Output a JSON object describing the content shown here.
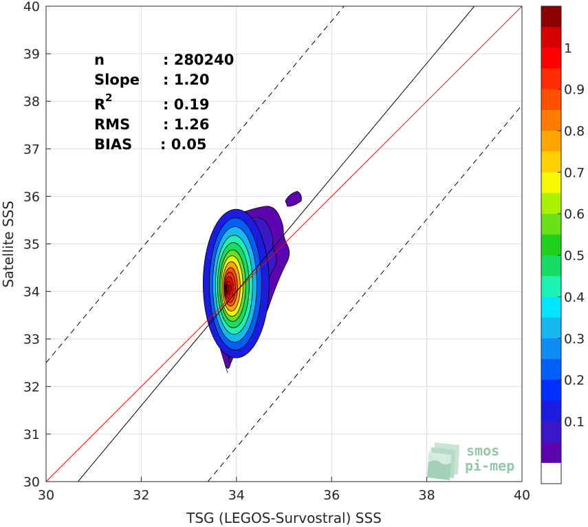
{
  "chart_data": {
    "type": "contour-density",
    "xlabel": "TSG (LEGOS-Survostral) SSS",
    "ylabel": "Satellite SSS",
    "xlim": [
      30,
      40
    ],
    "ylim": [
      30,
      40
    ],
    "xticks": [
      30,
      32,
      34,
      36,
      38,
      40
    ],
    "yticks": [
      30,
      31,
      32,
      33,
      34,
      35,
      36,
      37,
      38,
      39,
      40
    ],
    "grid": true,
    "stats": [
      {
        "label": "n",
        "value": ": 280240"
      },
      {
        "label": "Slope",
        "value": ": 1.20"
      },
      {
        "label": "R",
        "sup": "2",
        "value": ": 0.19"
      },
      {
        "label": "RMS",
        "value": ": 1.26"
      },
      {
        "label": "BIAS",
        "value": ": 0.05"
      }
    ],
    "reference_lines": [
      {
        "kind": "identity",
        "color": "#ff0000",
        "x": [
          30,
          40
        ],
        "y": [
          30,
          40
        ]
      },
      {
        "kind": "regression",
        "color": "#000000",
        "x": [
          30.67,
          39.0
        ],
        "y": [
          30,
          40
        ]
      },
      {
        "kind": "upper-bound",
        "color": "#000000",
        "dashed": true,
        "x": [
          30,
          36.26
        ],
        "y": [
          32.5,
          40
        ]
      },
      {
        "kind": "lower-bound",
        "color": "#000000",
        "dashed": true,
        "x": [
          33.4,
          40
        ],
        "y": [
          30,
          37.92
        ]
      }
    ],
    "density_center": {
      "x": 33.82,
      "y": 34.05
    },
    "contour_levels": [
      0.05,
      0.1,
      0.15,
      0.2,
      0.25,
      0.3,
      0.35,
      0.4,
      0.45,
      0.5,
      0.55,
      0.6,
      0.65,
      0.7,
      0.75,
      0.8,
      0.85,
      0.9,
      0.95,
      1.0
    ],
    "colorbar": {
      "ticks": [
        "0.1",
        "0.2",
        "0.3",
        "0.4",
        "0.5",
        "0.6",
        "0.7",
        "0.8",
        "0.9",
        "1"
      ],
      "colors": [
        "#ffffff",
        "#5b04b0",
        "#3a18c8",
        "#1c1ce0",
        "#0030ff",
        "#0060f8",
        "#0d8cf2",
        "#17b8f0",
        "#00e6ff",
        "#1cf2b4",
        "#16dc64",
        "#1fd11e",
        "#68e11a",
        "#acf200",
        "#f8f800",
        "#ffd000",
        "#ffa500",
        "#ff7b00",
        "#ff5000",
        "#ff2d00",
        "#ff0000",
        "#d60000",
        "#8c0000"
      ]
    },
    "logo": {
      "line1": "smos",
      "line2": "pi-mep"
    }
  }
}
